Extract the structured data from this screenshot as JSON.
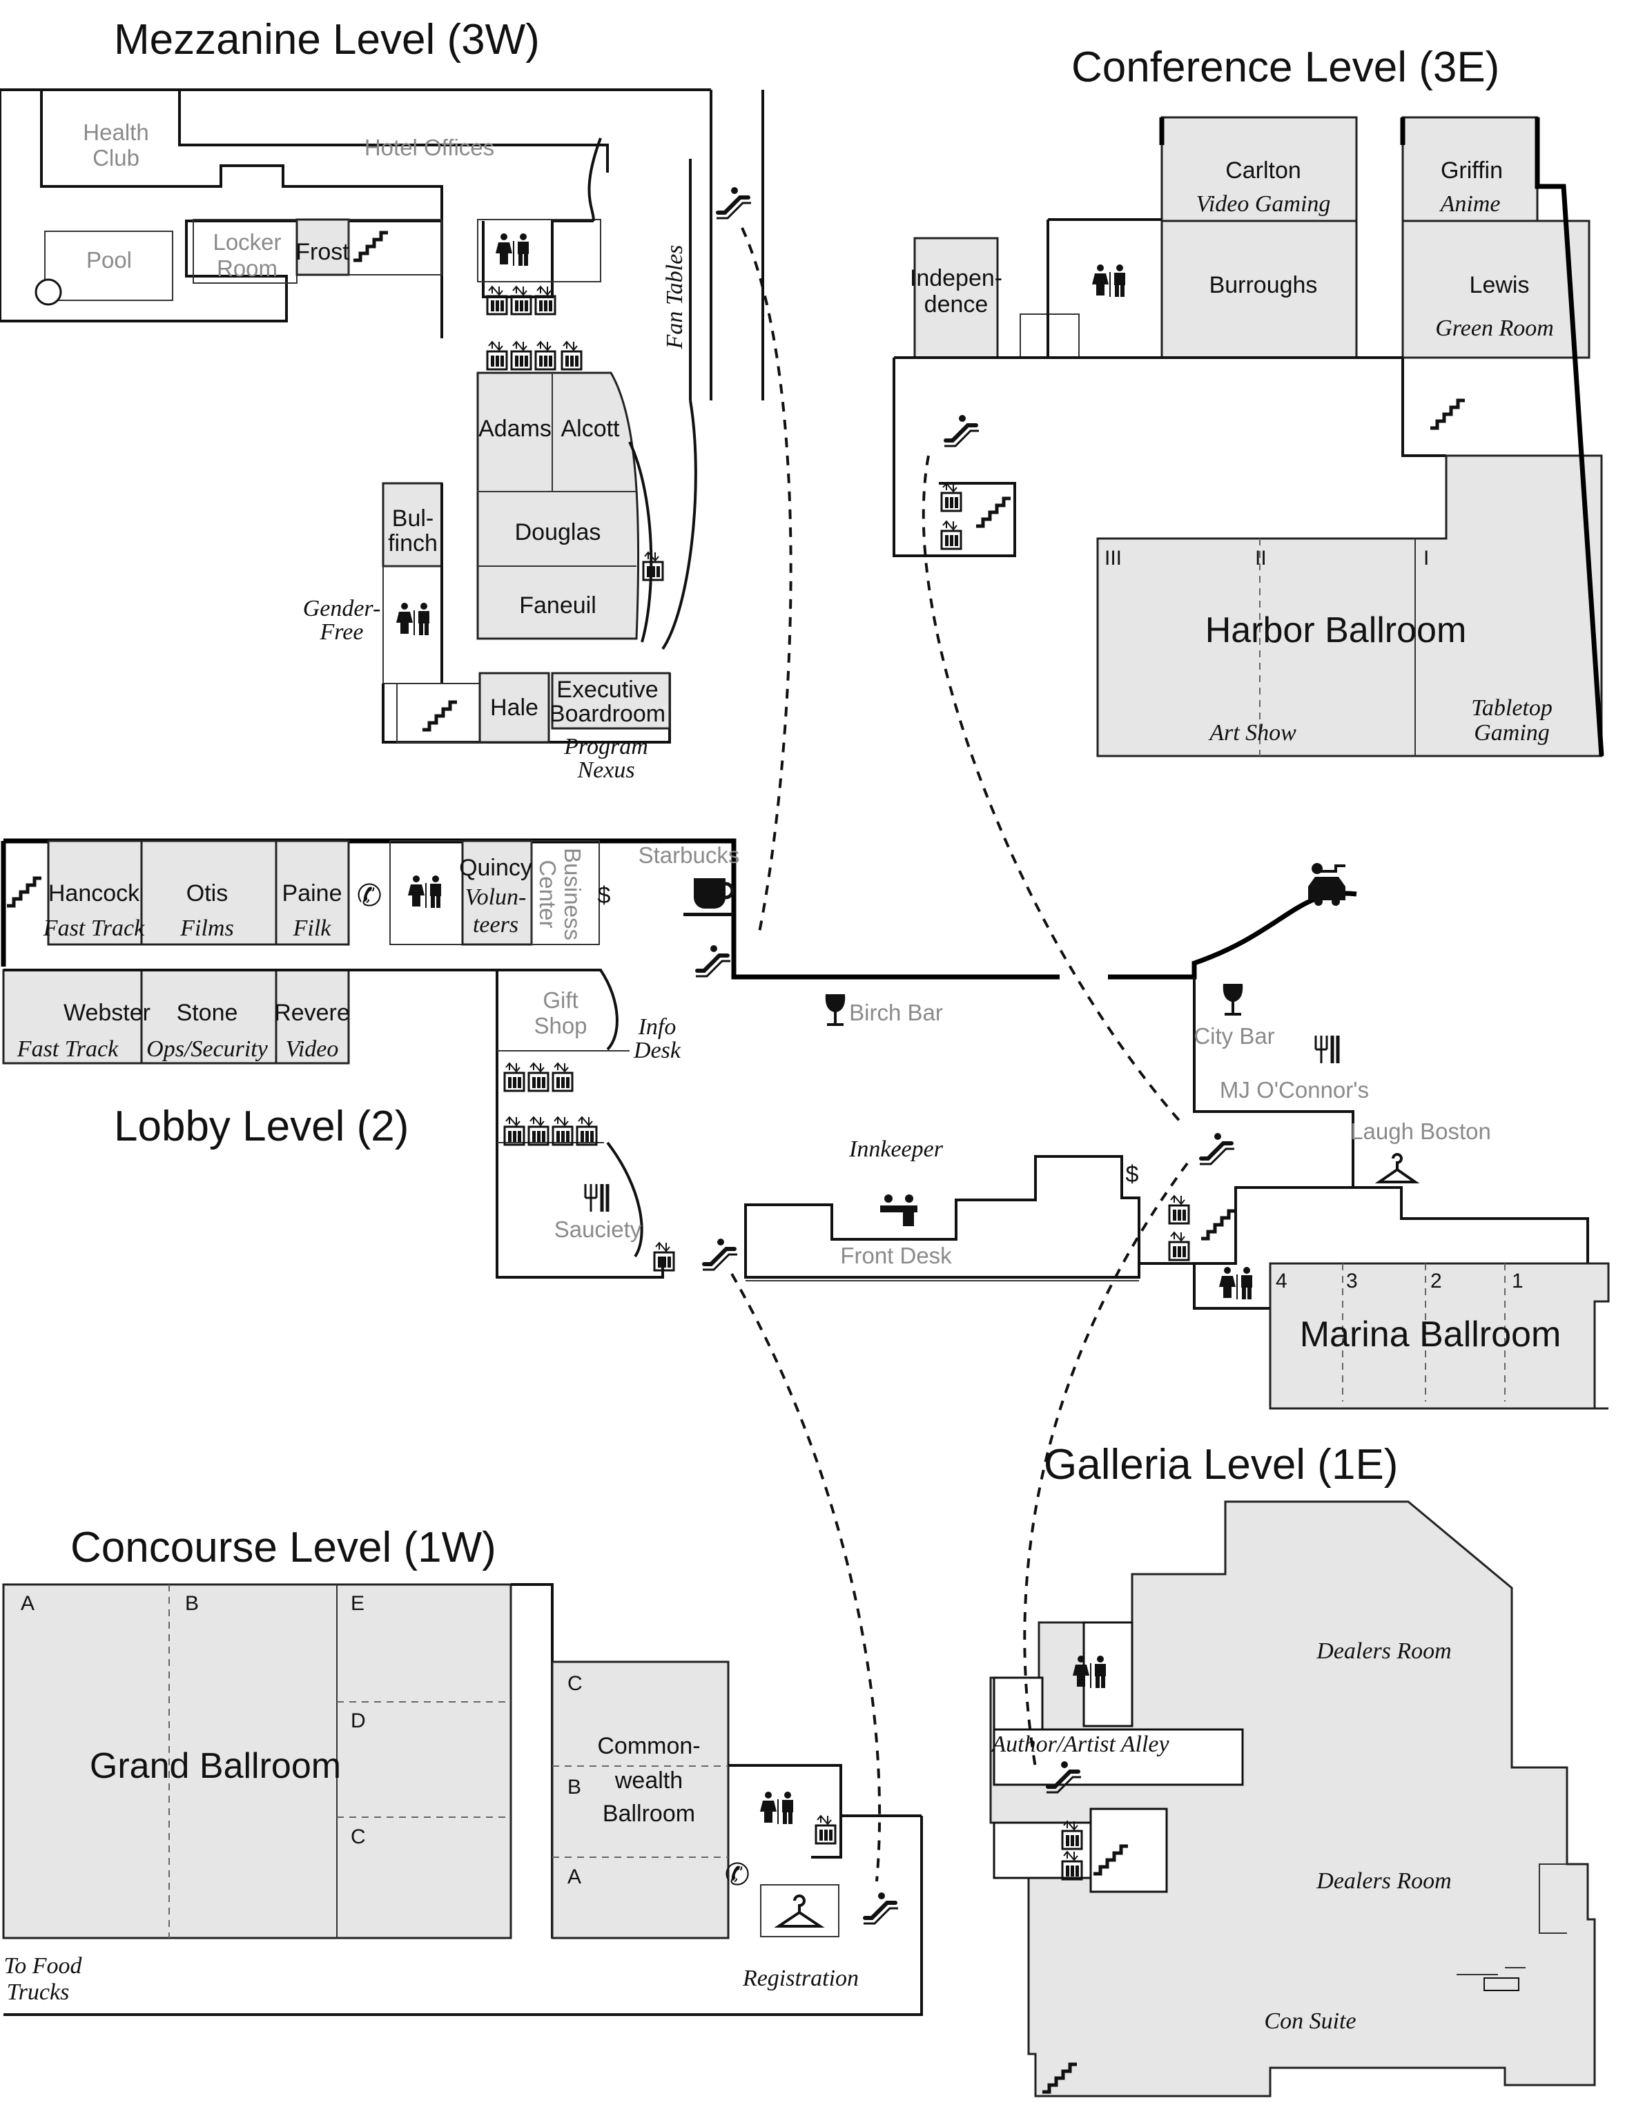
{
  "levels": {
    "mezzanine": "Mezzanine Level (3W)",
    "conference": "Conference Level (3E)",
    "lobby": "Lobby Level (2)",
    "galleria": "Galleria Level (1E)",
    "concourse": "Concourse Level (1W)"
  },
  "mezzanine": {
    "health_club": [
      "Health",
      "Club"
    ],
    "hotel_offices": "Hotel Offices",
    "pool": "Pool",
    "locker_room": [
      "Locker",
      "Room"
    ],
    "frost": "Frost",
    "fan_tables": "Fan Tables",
    "adams": "Adams",
    "alcott": "Alcott",
    "bulfinch": [
      "Bul-",
      "finch"
    ],
    "douglas": "Douglas",
    "faneuil": "Faneuil",
    "gender_free": [
      "Gender-",
      "Free"
    ],
    "hale": "Hale",
    "executive_boardroom": [
      "Executive",
      "Boardroom"
    ],
    "program_nexus": [
      "Program",
      "Nexus"
    ]
  },
  "conference": {
    "carlton": "Carlton",
    "carlton_use": "Video Gaming",
    "griffin": "Griffin",
    "griffin_use": "Anime",
    "independence": [
      "Indepen-",
      "dence"
    ],
    "burroughs": "Burroughs",
    "lewis": "Lewis",
    "lewis_use": "Green Room",
    "harbor_ballroom": "Harbor Ballroom",
    "sections": [
      "III",
      "II",
      "I"
    ],
    "art_show": "Art Show",
    "tabletop_gaming": [
      "Tabletop",
      "Gaming"
    ]
  },
  "lobby": {
    "hancock": "Hancock",
    "hancock_use": "Fast Track",
    "otis": "Otis",
    "otis_use": "Films",
    "paine": "Paine",
    "paine_use": "Filk",
    "quincy": "Quincy",
    "quincy_use": [
      "Volun-",
      "teers"
    ],
    "business_center": [
      "Business",
      "Center"
    ],
    "starbucks": "Starbucks",
    "webster": "Webster",
    "webster_use": "Fast Track",
    "stone": "Stone",
    "stone_use": "Ops/Security",
    "revere": "Revere",
    "revere_use": "Video",
    "gift_shop": [
      "Gift",
      "Shop"
    ],
    "info_desk": [
      "Info",
      "Desk"
    ],
    "birch_bar": "Birch Bar",
    "city_bar": "City Bar",
    "mj_oconnors": "MJ O'Connor's",
    "laugh_boston": "Laugh Boston",
    "innkeeper": "Innkeeper",
    "front_desk": "Front Desk",
    "sauciety": "Sauciety",
    "marina_ballroom": "Marina Ballroom",
    "marina_sections": [
      "4",
      "3",
      "2",
      "1"
    ],
    "dollar": "$"
  },
  "galleria": {
    "author_artist_alley": "Author/Artist Alley",
    "dealers_room_1": "Dealers Room",
    "dealers_room_2": "Dealers Room",
    "con_suite": "Con Suite"
  },
  "concourse": {
    "grand_ballroom": "Grand Ballroom",
    "sections": [
      "A",
      "B",
      "E",
      "D",
      "C"
    ],
    "commonwealth": [
      "Common-",
      "wealth",
      "Ballroom"
    ],
    "cw_sections": [
      "C",
      "B",
      "A"
    ],
    "to_food_trucks": [
      "To Food",
      "Trucks"
    ],
    "registration": "Registration"
  },
  "icons": [
    "restroom-icon",
    "elevator-icon",
    "stairs-icon",
    "escalator-icon",
    "phone-icon",
    "coffee-icon",
    "wine-icon",
    "dining-icon",
    "coat-check-icon",
    "valet-car-icon",
    "front-desk-icon"
  ]
}
